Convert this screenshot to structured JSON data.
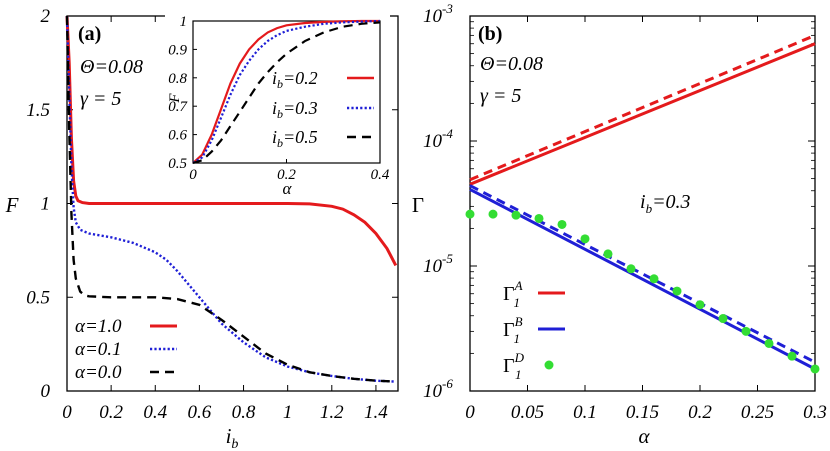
{
  "chart_data": [
    {
      "panel": "(a)",
      "type": "line",
      "xlabel": "i",
      "xlabel_sub": "b",
      "ylabel": "F",
      "xlim": [
        0,
        1.5
      ],
      "ylim": [
        0,
        2
      ],
      "xticks": [
        "0",
        "0.2",
        "0.4",
        "0.6",
        "0.8",
        "1",
        "1.2",
        "1.4"
      ],
      "yticks": [
        "0",
        "0.5",
        "1",
        "1.5",
        "2"
      ],
      "params": [
        "Θ=0.08",
        "γ = 5"
      ],
      "legend": [
        "α=1.0",
        "α=0.1",
        "α=0.0"
      ],
      "legend_position": "bottom-left",
      "colors": {
        "alpha_1_0": "#e41a1c",
        "alpha_0_1": "#1f1fd6",
        "alpha_0_0": "#000000"
      },
      "series": [
        {
          "name": "α=1.0",
          "style": "solid",
          "color": "#e41a1c",
          "x": [
            0.0,
            0.01,
            0.02,
            0.03,
            0.04,
            0.05,
            0.07,
            0.1,
            0.2,
            0.4,
            0.6,
            0.8,
            1.0,
            1.1,
            1.2,
            1.25,
            1.3,
            1.35,
            1.4,
            1.45,
            1.49
          ],
          "y": [
            2.0,
            1.75,
            1.35,
            1.12,
            1.04,
            1.015,
            1.005,
            1.0,
            1.0,
            1.0,
            1.0,
            1.0,
            1.0,
            0.998,
            0.985,
            0.97,
            0.94,
            0.9,
            0.84,
            0.76,
            0.67
          ]
        },
        {
          "name": "α=0.1",
          "style": "dotted",
          "color": "#1f1fd6",
          "x": [
            0.0,
            0.01,
            0.02,
            0.03,
            0.04,
            0.06,
            0.1,
            0.2,
            0.3,
            0.4,
            0.45,
            0.5,
            0.6,
            0.7,
            0.8,
            0.9,
            1.0,
            1.1,
            1.2,
            1.3,
            1.4,
            1.49
          ],
          "y": [
            2.0,
            1.6,
            1.2,
            0.98,
            0.9,
            0.86,
            0.84,
            0.82,
            0.79,
            0.74,
            0.7,
            0.64,
            0.5,
            0.36,
            0.26,
            0.18,
            0.13,
            0.1,
            0.08,
            0.065,
            0.055,
            0.05
          ]
        },
        {
          "name": "α=0.0",
          "style": "dashed",
          "color": "#000000",
          "x": [
            0.0,
            0.01,
            0.02,
            0.03,
            0.04,
            0.06,
            0.08,
            0.1,
            0.2,
            0.3,
            0.4,
            0.5,
            0.6,
            0.7,
            0.8,
            0.9,
            1.0,
            1.1,
            1.2,
            1.3,
            1.4,
            1.49
          ],
          "y": [
            2.0,
            1.4,
            0.95,
            0.7,
            0.6,
            0.53,
            0.51,
            0.505,
            0.5,
            0.5,
            0.5,
            0.49,
            0.46,
            0.38,
            0.29,
            0.2,
            0.14,
            0.1,
            0.08,
            0.065,
            0.055,
            0.05
          ]
        }
      ],
      "inset": {
        "xlabel": "α",
        "ylabel": "F",
        "xlim": [
          0,
          0.4
        ],
        "ylim": [
          0.5,
          1.0
        ],
        "xticks": [
          "0",
          "0.2",
          "0.4"
        ],
        "yticks": [
          "0.5",
          "0.6",
          "0.7",
          "0.8",
          "0.9",
          "1"
        ],
        "legend": [
          {
            "main": "i",
            "sub": "b",
            "rest": "=0.2"
          },
          {
            "main": "i",
            "sub": "b",
            "rest": "=0.3"
          },
          {
            "main": "i",
            "sub": "b",
            "rest": "=0.5"
          }
        ],
        "series": [
          {
            "name": "ib=0.2",
            "style": "solid",
            "color": "#e41a1c",
            "x": [
              0,
              0.02,
              0.04,
              0.06,
              0.08,
              0.1,
              0.12,
              0.14,
              0.16,
              0.18,
              0.2,
              0.24,
              0.28,
              0.32,
              0.36,
              0.4
            ],
            "y": [
              0.5,
              0.53,
              0.6,
              0.69,
              0.78,
              0.85,
              0.9,
              0.935,
              0.96,
              0.975,
              0.985,
              0.993,
              0.997,
              0.999,
              1.0,
              1.0
            ]
          },
          {
            "name": "ib=0.3",
            "style": "dotted",
            "color": "#1f1fd6",
            "x": [
              0,
              0.02,
              0.04,
              0.06,
              0.08,
              0.1,
              0.12,
              0.14,
              0.16,
              0.18,
              0.2,
              0.24,
              0.28,
              0.32,
              0.36,
              0.4
            ],
            "y": [
              0.5,
              0.52,
              0.58,
              0.66,
              0.74,
              0.81,
              0.86,
              0.9,
              0.93,
              0.95,
              0.965,
              0.98,
              0.99,
              0.995,
              0.998,
              1.0
            ]
          },
          {
            "name": "ib=0.5",
            "style": "dashed",
            "color": "#000000",
            "x": [
              0,
              0.02,
              0.04,
              0.06,
              0.08,
              0.1,
              0.12,
              0.14,
              0.16,
              0.18,
              0.2,
              0.24,
              0.28,
              0.32,
              0.36,
              0.4
            ],
            "y": [
              0.5,
              0.51,
              0.54,
              0.58,
              0.63,
              0.68,
              0.73,
              0.78,
              0.82,
              0.855,
              0.885,
              0.93,
              0.96,
              0.98,
              0.99,
              0.995
            ]
          }
        ]
      }
    },
    {
      "panel": "(b)",
      "type": "line",
      "xlabel": "α",
      "ylabel": "Γ",
      "yscale": "log",
      "xlim": [
        0,
        0.3
      ],
      "ylim": [
        1e-06,
        0.001
      ],
      "xticks": [
        "0",
        "0.05",
        "0.1",
        "0.15",
        "0.2",
        "0.25",
        "0.3"
      ],
      "yticks": [
        {
          "base": "10",
          "exp": "-6"
        },
        {
          "base": "10",
          "exp": "-5"
        },
        {
          "base": "10",
          "exp": "-4"
        },
        {
          "base": "10",
          "exp": "-3"
        }
      ],
      "params": [
        "Θ=0.08",
        "γ = 5"
      ],
      "annotation": {
        "main": "i",
        "sub": "b",
        "rest": "=0.3"
      },
      "legend": [
        {
          "main": "Γ",
          "sub": "1",
          "sup": "A"
        },
        {
          "main": "Γ",
          "sub": "1",
          "sup": "B"
        },
        {
          "main": "Γ",
          "sub": "1",
          "sup": "D"
        }
      ],
      "legend_position": "bottom-left",
      "colors": {
        "gamma_A": "#e41a1c",
        "gamma_B": "#1f1fd6",
        "gamma_D": "#33dd33"
      },
      "series": [
        {
          "name": "Γ1A",
          "style": "solid",
          "color": "#e41a1c",
          "x": [
            0,
            0.3
          ],
          "y": [
            4.5e-05,
            0.0006
          ]
        },
        {
          "name": "Γ1A (dashed)",
          "style": "dashed",
          "color": "#e41a1c",
          "x": [
            0,
            0.3
          ],
          "y": [
            4.9e-05,
            0.0007
          ]
        },
        {
          "name": "Γ1B",
          "style": "solid",
          "color": "#1f1fd6",
          "x": [
            0,
            0.3
          ],
          "y": [
            4.1e-05,
            1.5e-06
          ]
        },
        {
          "name": "Γ1B (dashed)",
          "style": "dashed",
          "color": "#1f1fd6",
          "x": [
            0,
            0.3
          ],
          "y": [
            4.4e-05,
            1.7e-06
          ]
        },
        {
          "name": "Γ1D",
          "style": "points",
          "color": "#33dd33",
          "x": [
            0,
            0.02,
            0.04,
            0.06,
            0.08,
            0.1,
            0.12,
            0.14,
            0.16,
            0.18,
            0.2,
            0.22,
            0.24,
            0.26,
            0.28,
            0.3
          ],
          "y": [
            2.6e-05,
            2.6e-05,
            2.55e-05,
            2.4e-05,
            2.15e-05,
            1.65e-05,
            1.25e-05,
            9.5e-06,
            7.9e-06,
            6.3e-06,
            4.9e-06,
            3.8e-06,
            3e-06,
            2.4e-06,
            1.9e-06,
            1.5e-06
          ]
        }
      ]
    }
  ]
}
